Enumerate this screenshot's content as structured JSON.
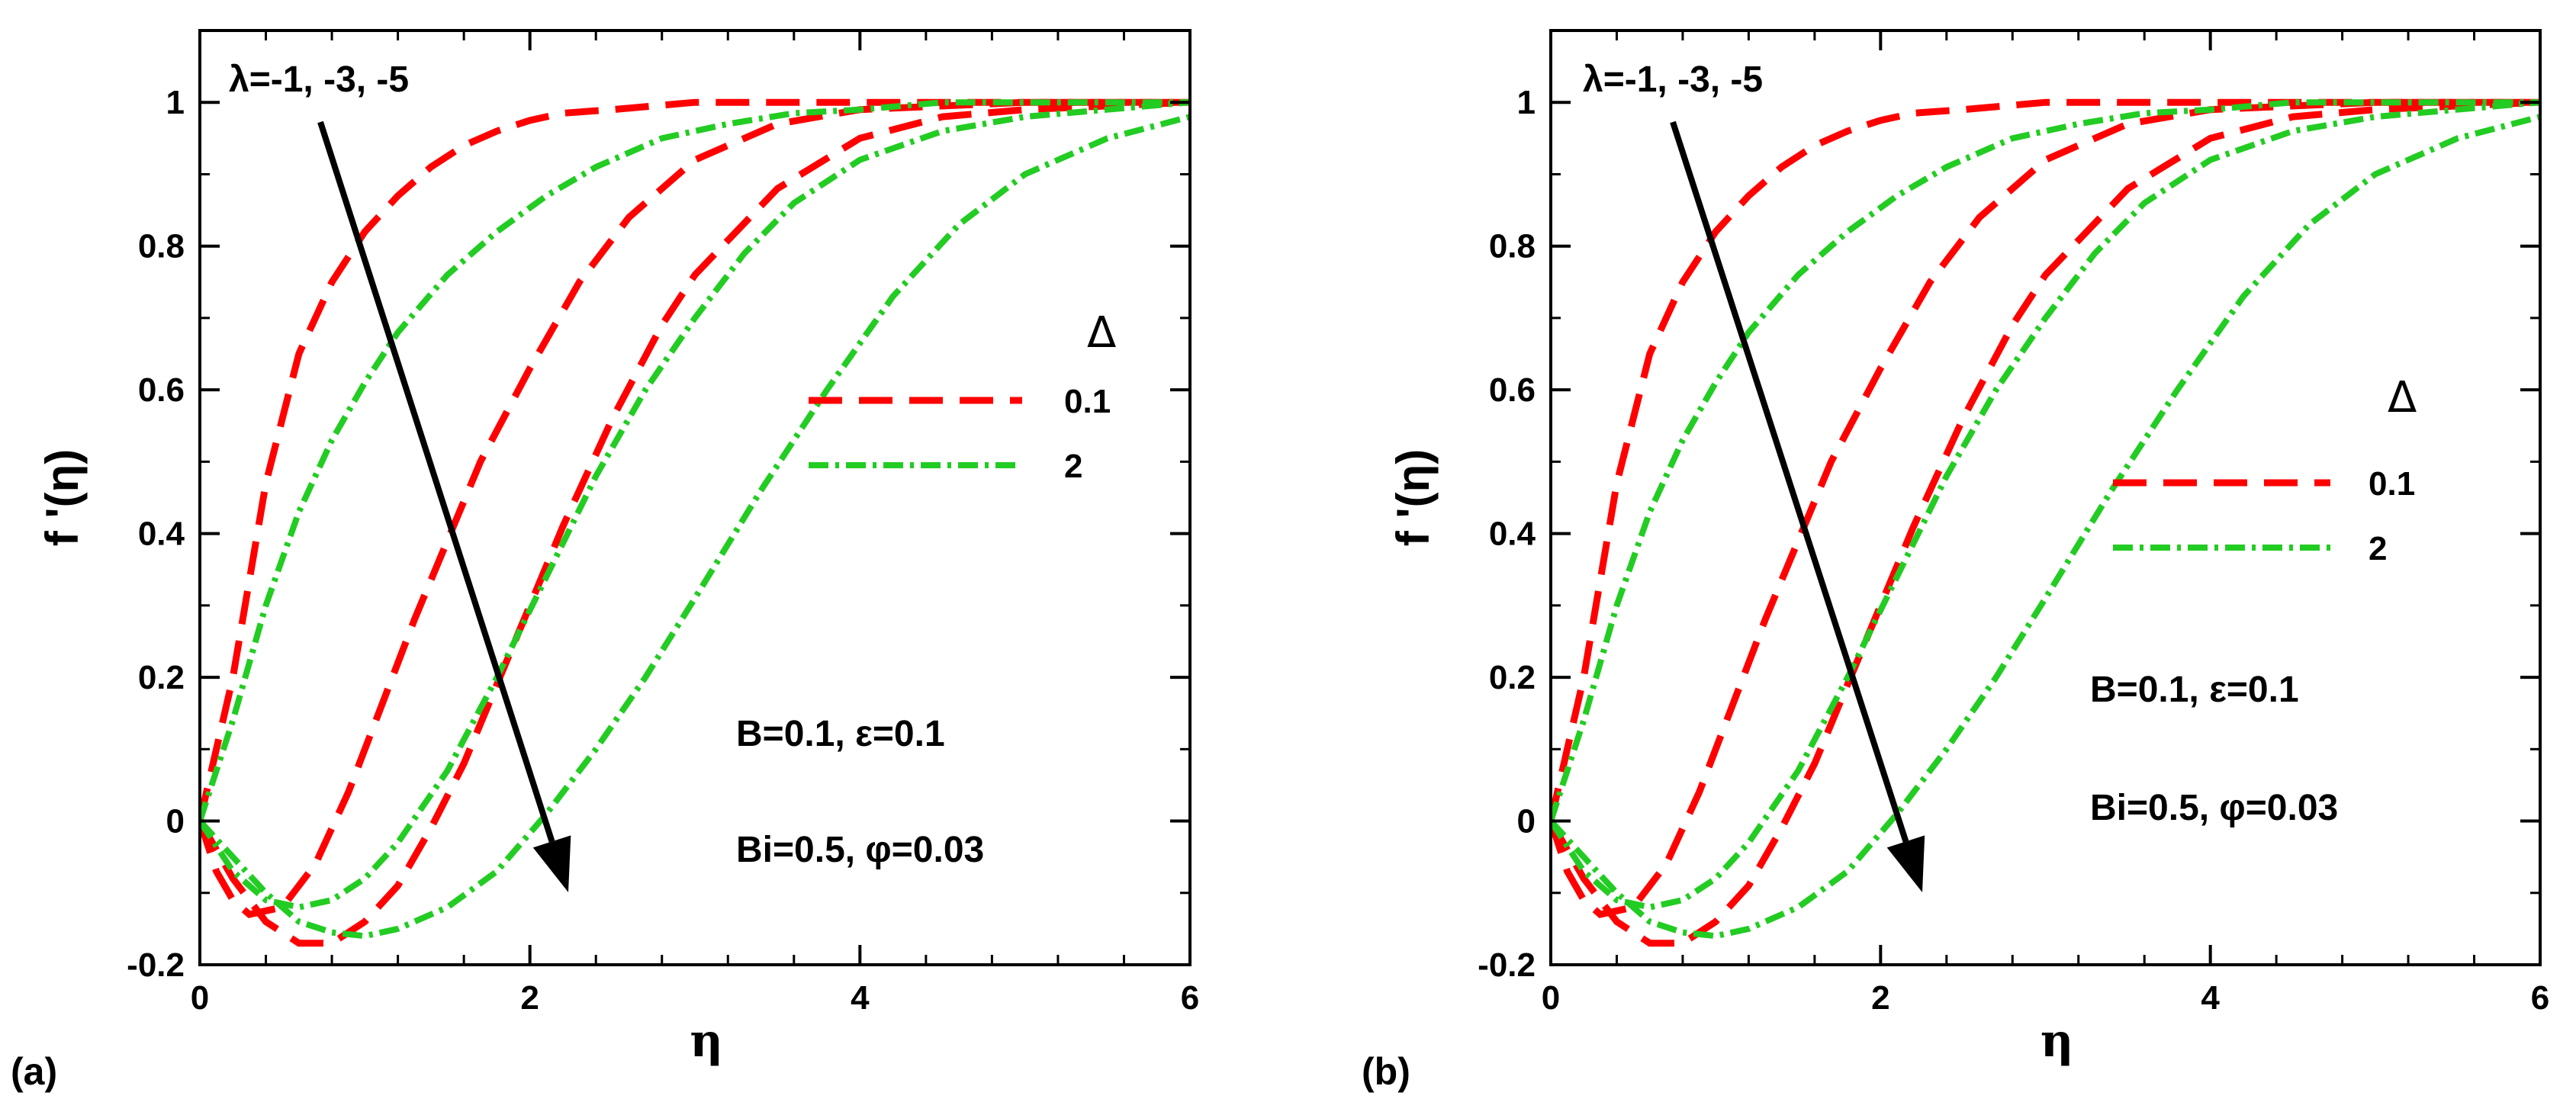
{
  "chart_data": [
    {
      "type": "line",
      "panel_label": "(a)",
      "xlabel": "η",
      "ylabel": "f '(η)",
      "xlim": [
        0,
        6
      ],
      "ylim": [
        -0.2,
        1.1
      ],
      "x_ticks": [
        "0",
        "2",
        "4",
        "6"
      ],
      "y_ticks": [
        "-0.2",
        "0",
        "0.2",
        "0.4",
        "0.6",
        "0.8",
        "1"
      ],
      "legend": {
        "title": "Δ",
        "position": "right-middle",
        "entries": [
          {
            "label": "0.1",
            "color": "#ff0000",
            "style": "dashed"
          },
          {
            "label": "2",
            "color": "#22cc22",
            "style": "dash-dot"
          }
        ]
      },
      "arrow_label": "λ=-1, -3, -5",
      "annotations": [
        "B=0.1, ε=0.1",
        "Bi=0.5, φ=0.03"
      ],
      "series": [
        {
          "name": "Δ=0.1, λ=-1",
          "color": "#ff0000",
          "style": "dashed",
          "x": [
            0,
            0.2,
            0.4,
            0.6,
            0.8,
            1.0,
            1.2,
            1.4,
            1.6,
            1.8,
            2.0,
            2.2,
            2.5,
            3.0,
            3.5,
            4.0,
            5.0,
            6.0
          ],
          "y": [
            0,
            0.2,
            0.47,
            0.65,
            0.75,
            0.82,
            0.87,
            0.91,
            0.94,
            0.96,
            0.975,
            0.985,
            0.99,
            1.0,
            1.0,
            1.0,
            1.0,
            1.0
          ]
        },
        {
          "name": "Δ=0.1, λ=-3",
          "color": "#ff0000",
          "style": "dashed",
          "x": [
            0,
            0.1,
            0.2,
            0.3,
            0.5,
            0.7,
            0.9,
            1.1,
            1.3,
            1.5,
            1.7,
            2.0,
            2.3,
            2.6,
            3.0,
            3.5,
            4.0,
            5.0,
            6.0
          ],
          "y": [
            0,
            -0.07,
            -0.11,
            -0.13,
            -0.12,
            -0.06,
            0.04,
            0.16,
            0.28,
            0.39,
            0.5,
            0.63,
            0.75,
            0.84,
            0.92,
            0.97,
            0.99,
            1.0,
            1.0
          ]
        },
        {
          "name": "Δ=0.1, λ=-5",
          "color": "#ff0000",
          "style": "dashed",
          "x": [
            0,
            0.2,
            0.4,
            0.6,
            0.8,
            1.0,
            1.2,
            1.4,
            1.6,
            1.8,
            2.0,
            2.2,
            2.5,
            2.8,
            3.0,
            3.5,
            4.0,
            4.5,
            5.0,
            6.0
          ],
          "y": [
            0,
            -0.08,
            -0.14,
            -0.17,
            -0.17,
            -0.14,
            -0.09,
            -0.01,
            0.08,
            0.19,
            0.3,
            0.41,
            0.56,
            0.69,
            0.76,
            0.88,
            0.95,
            0.98,
            0.99,
            1.0
          ]
        },
        {
          "name": "Δ=2, λ=-1",
          "color": "#22cc22",
          "style": "dash-dot",
          "x": [
            0,
            0.2,
            0.4,
            0.6,
            0.8,
            1.0,
            1.2,
            1.5,
            1.8,
            2.1,
            2.4,
            2.8,
            3.2,
            3.6,
            4.0,
            4.5,
            5.0,
            6.0
          ],
          "y": [
            0,
            0.14,
            0.3,
            0.43,
            0.53,
            0.61,
            0.68,
            0.76,
            0.82,
            0.87,
            0.91,
            0.95,
            0.97,
            0.985,
            0.99,
            1.0,
            1.0,
            1.0
          ]
        },
        {
          "name": "Δ=2, λ=-3",
          "color": "#22cc22",
          "style": "dash-dot",
          "x": [
            0,
            0.2,
            0.4,
            0.6,
            0.8,
            1.0,
            1.2,
            1.5,
            1.8,
            2.1,
            2.4,
            2.7,
            3.0,
            3.3,
            3.6,
            4.0,
            4.5,
            5.0,
            6.0
          ],
          "y": [
            0,
            -0.07,
            -0.11,
            -0.12,
            -0.11,
            -0.08,
            -0.03,
            0.07,
            0.2,
            0.34,
            0.48,
            0.6,
            0.7,
            0.79,
            0.86,
            0.92,
            0.96,
            0.98,
            1.0
          ]
        },
        {
          "name": "Δ=2, λ=-5",
          "color": "#22cc22",
          "style": "dash-dot",
          "x": [
            0,
            0.2,
            0.4,
            0.6,
            0.8,
            1.0,
            1.2,
            1.5,
            1.8,
            2.1,
            2.4,
            2.7,
            3.0,
            3.4,
            3.8,
            4.2,
            4.6,
            5.0,
            5.5,
            6.0
          ],
          "y": [
            0,
            -0.05,
            -0.1,
            -0.14,
            -0.155,
            -0.16,
            -0.15,
            -0.12,
            -0.07,
            0.01,
            0.1,
            0.2,
            0.31,
            0.46,
            0.6,
            0.73,
            0.83,
            0.9,
            0.95,
            0.98
          ]
        }
      ]
    },
    {
      "type": "line",
      "panel_label": "(b)",
      "xlabel": "η",
      "ylabel": "f '(η)",
      "xlim": [
        0,
        6
      ],
      "ylim": [
        -0.2,
        1.1
      ],
      "x_ticks": [
        "0",
        "2",
        "4",
        "6"
      ],
      "y_ticks": [
        "-0.2",
        "0",
        "0.2",
        "0.4",
        "0.6",
        "0.8",
        "1"
      ],
      "legend": {
        "title": "Δ",
        "position": "right-middle",
        "entries": [
          {
            "label": "0.1",
            "color": "#ff0000",
            "style": "dashed"
          },
          {
            "label": "2",
            "color": "#22cc22",
            "style": "dash-dot"
          }
        ]
      },
      "arrow_label": "λ=-1, -3, -5",
      "annotations": [
        "B=0.1, ε=0.1",
        "Bi=0.5, φ=0.03"
      ],
      "series": [
        {
          "name": "Δ=0.1, λ=-1",
          "color": "#ff0000",
          "style": "dashed",
          "x": [
            0,
            0.2,
            0.4,
            0.6,
            0.8,
            1.0,
            1.2,
            1.4,
            1.6,
            1.8,
            2.0,
            2.2,
            2.5,
            3.0,
            3.5,
            4.0,
            5.0,
            6.0
          ],
          "y": [
            0,
            0.2,
            0.47,
            0.65,
            0.75,
            0.82,
            0.87,
            0.91,
            0.94,
            0.96,
            0.975,
            0.985,
            0.99,
            1.0,
            1.0,
            1.0,
            1.0,
            1.0
          ]
        },
        {
          "name": "Δ=0.1, λ=-3",
          "color": "#ff0000",
          "style": "dashed",
          "x": [
            0,
            0.1,
            0.2,
            0.3,
            0.5,
            0.7,
            0.9,
            1.1,
            1.3,
            1.5,
            1.7,
            2.0,
            2.3,
            2.6,
            3.0,
            3.5,
            4.0,
            5.0,
            6.0
          ],
          "y": [
            0,
            -0.07,
            -0.11,
            -0.13,
            -0.12,
            -0.06,
            0.04,
            0.16,
            0.28,
            0.39,
            0.5,
            0.63,
            0.75,
            0.84,
            0.92,
            0.97,
            0.99,
            1.0,
            1.0
          ]
        },
        {
          "name": "Δ=0.1, λ=-5",
          "color": "#ff0000",
          "style": "dashed",
          "x": [
            0,
            0.2,
            0.4,
            0.6,
            0.8,
            1.0,
            1.2,
            1.4,
            1.6,
            1.8,
            2.0,
            2.2,
            2.5,
            2.8,
            3.0,
            3.5,
            4.0,
            4.5,
            5.0,
            6.0
          ],
          "y": [
            0,
            -0.08,
            -0.14,
            -0.17,
            -0.17,
            -0.14,
            -0.09,
            -0.01,
            0.08,
            0.19,
            0.3,
            0.41,
            0.56,
            0.69,
            0.76,
            0.88,
            0.95,
            0.98,
            0.99,
            1.0
          ]
        },
        {
          "name": "Δ=2, λ=-1",
          "color": "#22cc22",
          "style": "dash-dot",
          "x": [
            0,
            0.2,
            0.4,
            0.6,
            0.8,
            1.0,
            1.2,
            1.5,
            1.8,
            2.1,
            2.4,
            2.8,
            3.2,
            3.6,
            4.0,
            4.5,
            5.0,
            6.0
          ],
          "y": [
            0,
            0.14,
            0.3,
            0.43,
            0.53,
            0.61,
            0.68,
            0.76,
            0.82,
            0.87,
            0.91,
            0.95,
            0.97,
            0.985,
            0.99,
            1.0,
            1.0,
            1.0
          ]
        },
        {
          "name": "Δ=2, λ=-3",
          "color": "#22cc22",
          "style": "dash-dot",
          "x": [
            0,
            0.2,
            0.4,
            0.6,
            0.8,
            1.0,
            1.2,
            1.5,
            1.8,
            2.1,
            2.4,
            2.7,
            3.0,
            3.3,
            3.6,
            4.0,
            4.5,
            5.0,
            6.0
          ],
          "y": [
            0,
            -0.07,
            -0.11,
            -0.12,
            -0.11,
            -0.08,
            -0.03,
            0.07,
            0.2,
            0.34,
            0.48,
            0.6,
            0.7,
            0.79,
            0.86,
            0.92,
            0.96,
            0.98,
            1.0
          ]
        },
        {
          "name": "Δ=2, λ=-5",
          "color": "#22cc22",
          "style": "dash-dot",
          "x": [
            0,
            0.2,
            0.4,
            0.6,
            0.8,
            1.0,
            1.2,
            1.5,
            1.8,
            2.1,
            2.4,
            2.7,
            3.0,
            3.4,
            3.8,
            4.2,
            4.6,
            5.0,
            5.5,
            6.0
          ],
          "y": [
            0,
            -0.05,
            -0.1,
            -0.14,
            -0.155,
            -0.16,
            -0.15,
            -0.12,
            -0.07,
            0.01,
            0.1,
            0.2,
            0.31,
            0.46,
            0.6,
            0.73,
            0.83,
            0.9,
            0.95,
            0.98
          ]
        }
      ]
    }
  ]
}
